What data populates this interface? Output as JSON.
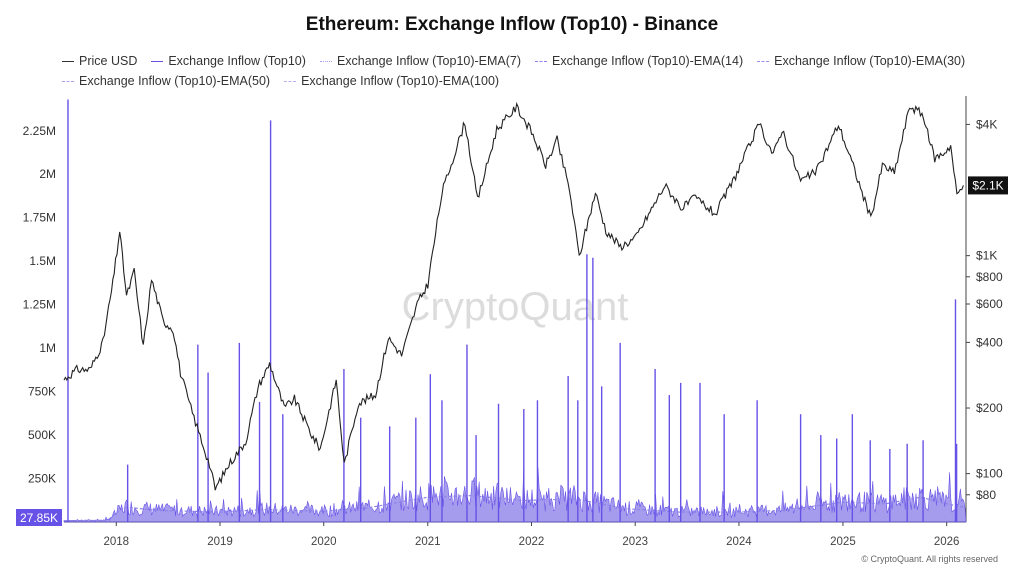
{
  "title": "Ethereum: Exchange Inflow (Top10) - Binance",
  "legend": [
    {
      "label": "Price USD",
      "color": "#333333",
      "style": "solid"
    },
    {
      "label": "Exchange Inflow (Top10)",
      "color": "#6652e6",
      "style": "solid"
    },
    {
      "label": "Exchange Inflow (Top10)-EMA(7)",
      "color": "#a9a1ee",
      "style": "dotted"
    },
    {
      "label": "Exchange Inflow (Top10)-EMA(14)",
      "color": "#8d82ea",
      "style": "dashed"
    },
    {
      "label": "Exchange Inflow (Top10)-EMA(30)",
      "color": "#9a90ec",
      "style": "dashed"
    },
    {
      "label": "Exchange Inflow (Top10)-EMA(50)",
      "color": "#aaa2f0",
      "style": "dashed"
    },
    {
      "label": "Exchange Inflow (Top10)-EMA(100)",
      "color": "#b8b2f2",
      "style": "dashed"
    }
  ],
  "watermark": "CryptoQuant",
  "footer": "© CryptoQuant. All rights reserved",
  "current_inflow_label": "27.85K",
  "current_price_label": "$2.1K",
  "colors": {
    "price": "#222222",
    "inflow": "#6652e6",
    "inflow_fill": "#5b4ae0",
    "ema": "#8d82ea"
  },
  "chart_data": {
    "type": "line",
    "x_ticks": [
      "2018",
      "2019",
      "2020",
      "2021",
      "2022",
      "2023",
      "2024",
      "2025",
      "2026"
    ],
    "left_axis": {
      "label": "",
      "ticks": [
        "250K",
        "500K",
        "750K",
        "1M",
        "1.25M",
        "1.5M",
        "1.75M",
        "2M",
        "2.25M"
      ],
      "range": [
        0,
        2450000
      ]
    },
    "right_axis": {
      "label": "",
      "scale": "log",
      "ticks": [
        "$80",
        "$100",
        "$200",
        "$400",
        "$600",
        "$800",
        "$1K",
        "$4K"
      ],
      "range": [
        60,
        5400
      ]
    },
    "series": [
      {
        "name": "Price USD",
        "axis": "right",
        "points": [
          [
            "2017-07-01",
            270
          ],
          [
            "2017-08-15",
            300
          ],
          [
            "2017-10-01",
            300
          ],
          [
            "2017-11-15",
            400
          ],
          [
            "2017-12-20",
            750
          ],
          [
            "2018-01-13",
            1300
          ],
          [
            "2018-02-06",
            650
          ],
          [
            "2018-03-05",
            850
          ],
          [
            "2018-04-06",
            380
          ],
          [
            "2018-05-05",
            780
          ],
          [
            "2018-06-15",
            500
          ],
          [
            "2018-07-20",
            460
          ],
          [
            "2018-08-15",
            290
          ],
          [
            "2018-09-15",
            210
          ],
          [
            "2018-11-25",
            110
          ],
          [
            "2018-12-15",
            85
          ],
          [
            "2019-02-01",
            110
          ],
          [
            "2019-04-01",
            140
          ],
          [
            "2019-05-15",
            250
          ],
          [
            "2019-06-25",
            320
          ],
          [
            "2019-08-15",
            200
          ],
          [
            "2019-09-20",
            220
          ],
          [
            "2019-11-20",
            150
          ],
          [
            "2019-12-20",
            130
          ],
          [
            "2020-02-14",
            270
          ],
          [
            "2020-03-13",
            110
          ],
          [
            "2020-05-01",
            210
          ],
          [
            "2020-07-01",
            230
          ],
          [
            "2020-08-15",
            420
          ],
          [
            "2020-10-01",
            350
          ],
          [
            "2020-11-25",
            600
          ],
          [
            "2021-01-01",
            740
          ],
          [
            "2021-02-20",
            1950
          ],
          [
            "2021-05-12",
            4100
          ],
          [
            "2021-06-25",
            1800
          ],
          [
            "2021-09-01",
            3800
          ],
          [
            "2021-11-10",
            4800
          ],
          [
            "2022-01-01",
            3700
          ],
          [
            "2022-02-20",
            2600
          ],
          [
            "2022-04-01",
            3400
          ],
          [
            "2022-05-15",
            2000
          ],
          [
            "2022-06-18",
            990
          ],
          [
            "2022-08-14",
            1950
          ],
          [
            "2022-09-20",
            1300
          ],
          [
            "2022-11-10",
            1100
          ],
          [
            "2023-01-01",
            1200
          ],
          [
            "2023-04-15",
            2100
          ],
          [
            "2023-06-15",
            1650
          ],
          [
            "2023-08-01",
            1850
          ],
          [
            "2023-10-10",
            1550
          ],
          [
            "2023-12-15",
            2250
          ],
          [
            "2024-03-12",
            4000
          ],
          [
            "2024-05-01",
            2900
          ],
          [
            "2024-06-01",
            3800
          ],
          [
            "2024-08-05",
            2200
          ],
          [
            "2024-10-01",
            2450
          ],
          [
            "2024-12-16",
            4000
          ],
          [
            "2025-02-01",
            2700
          ],
          [
            "2025-04-09",
            1480
          ],
          [
            "2025-05-20",
            2600
          ],
          [
            "2025-07-01",
            2400
          ],
          [
            "2025-08-24",
            4850
          ],
          [
            "2025-10-06",
            4500
          ],
          [
            "2025-11-20",
            2800
          ],
          [
            "2025-12-20",
            2950
          ],
          [
            "2026-01-15",
            3200
          ],
          [
            "2026-02-06",
            1900
          ],
          [
            "2026-03-01",
            2100
          ]
        ]
      },
      {
        "name": "Exchange Inflow (Top10)",
        "axis": "left",
        "baseline": [
          [
            "2017-07-01",
            8000
          ],
          [
            "2017-12-01",
            10000
          ],
          [
            "2018-01-05",
            60000
          ],
          [
            "2018-02-01",
            90000
          ],
          [
            "2018-06-01",
            70000
          ],
          [
            "2019-01-01",
            60000
          ],
          [
            "2019-06-01",
            75000
          ],
          [
            "2020-01-01",
            65000
          ],
          [
            "2020-06-01",
            85000
          ],
          [
            "2021-01-01",
            150000
          ],
          [
            "2021-06-01",
            160000
          ],
          [
            "2021-12-01",
            130000
          ],
          [
            "2022-06-01",
            140000
          ],
          [
            "2022-12-01",
            80000
          ],
          [
            "2023-06-01",
            60000
          ],
          [
            "2024-01-01",
            60000
          ],
          [
            "2024-06-01",
            70000
          ],
          [
            "2025-01-01",
            120000
          ],
          [
            "2025-06-01",
            110000
          ],
          [
            "2025-10-01",
            150000
          ],
          [
            "2026-01-01",
            110000
          ],
          [
            "2026-03-01",
            90000
          ]
        ],
        "spikes": [
          [
            "2017-07-15",
            2430000
          ],
          [
            "2018-02-10",
            330000
          ],
          [
            "2018-10-15",
            1020000
          ],
          [
            "2018-11-20",
            860000
          ],
          [
            "2019-03-10",
            1030000
          ],
          [
            "2019-05-20",
            690000
          ],
          [
            "2019-06-28",
            2310000
          ],
          [
            "2019-08-10",
            620000
          ],
          [
            "2020-03-12",
            880000
          ],
          [
            "2020-05-10",
            600000
          ],
          [
            "2020-08-20",
            550000
          ],
          [
            "2020-11-20",
            600000
          ],
          [
            "2021-01-10",
            850000
          ],
          [
            "2021-02-20",
            700000
          ],
          [
            "2021-05-19",
            1020000
          ],
          [
            "2021-06-20",
            500000
          ],
          [
            "2021-09-07",
            680000
          ],
          [
            "2021-12-05",
            650000
          ],
          [
            "2022-01-22",
            700000
          ],
          [
            "2022-05-10",
            840000
          ],
          [
            "2022-06-13",
            700000
          ],
          [
            "2022-07-15",
            1540000
          ],
          [
            "2022-08-05",
            1520000
          ],
          [
            "2022-09-05",
            780000
          ],
          [
            "2022-11-09",
            1030000
          ],
          [
            "2023-03-12",
            880000
          ],
          [
            "2023-05-01",
            730000
          ],
          [
            "2023-06-10",
            800000
          ],
          [
            "2023-08-17",
            800000
          ],
          [
            "2023-11-10",
            620000
          ],
          [
            "2024-03-05",
            700000
          ],
          [
            "2024-08-05",
            620000
          ],
          [
            "2024-10-15",
            500000
          ],
          [
            "2024-12-10",
            480000
          ],
          [
            "2025-02-03",
            620000
          ],
          [
            "2025-04-07",
            470000
          ],
          [
            "2025-06-15",
            420000
          ],
          [
            "2025-08-15",
            450000
          ],
          [
            "2025-10-10",
            470000
          ],
          [
            "2026-02-01",
            1280000
          ],
          [
            "2026-02-05",
            450000
          ]
        ],
        "last_value": 27850
      }
    ],
    "grid": false,
    "legend_position": "top"
  }
}
